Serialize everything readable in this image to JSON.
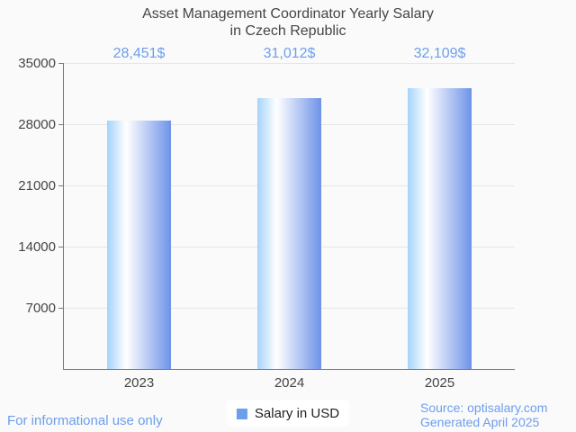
{
  "page": {
    "background_color": "#fafafa"
  },
  "title": {
    "line1": "Asset Management Coordinator Yearly Salary",
    "line2": "in Czech Republic"
  },
  "chart_data": {
    "type": "bar",
    "title": "Asset Management Coordinator Yearly Salary in Czech Republic",
    "categories": [
      "2023",
      "2024",
      "2025"
    ],
    "series": [
      {
        "name": "Salary in USD",
        "values": [
          28451,
          31012,
          32109
        ]
      }
    ],
    "value_labels": [
      "28,451$",
      "31,012$",
      "32,109$"
    ],
    "xlabel": "",
    "ylabel": "",
    "ylim": [
      0,
      35000
    ],
    "yticks": [
      35000,
      28000,
      21000,
      14000,
      7000
    ],
    "grid": true,
    "legend_position": "bottom",
    "annotation_color": "#6d9eeb",
    "bar_gradient": [
      "#a5d3fb",
      "#ffffff",
      "#6e93e8"
    ],
    "axis_color": "#7a7a7a",
    "gridline_color": "#e6e6e6",
    "label_color": "#454545"
  },
  "legend": {
    "label": "Salary in USD",
    "swatch_color": "#6d9eeb"
  },
  "footer": {
    "left": "For informational use only",
    "source": "Source: optisalary.com",
    "generated": "Generated April 2025"
  }
}
